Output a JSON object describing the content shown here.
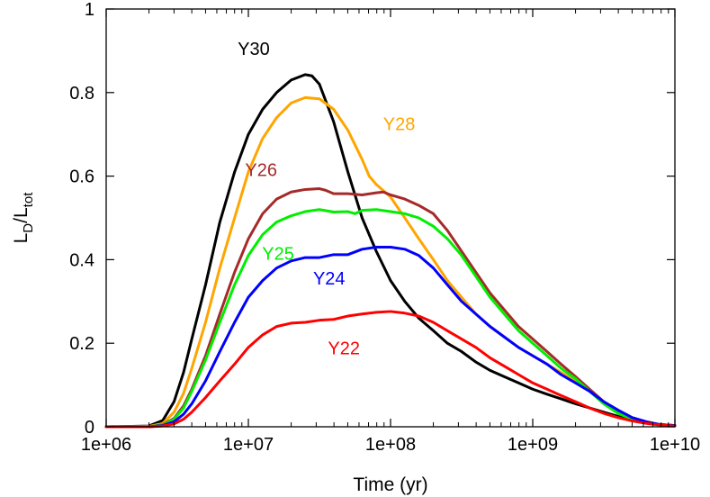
{
  "chart_data": {
    "type": "line",
    "xlabel": "Time (yr)",
    "ylabel": {
      "base": "L",
      "num_sub": "D",
      "den_base": "L",
      "den_sub": "tot"
    },
    "xscale": "log",
    "xlim": [
      1000000,
      10000000000
    ],
    "ylim": [
      0,
      1
    ],
    "xticks": [
      {
        "value": 1000000,
        "label": "1e+06"
      },
      {
        "value": 10000000,
        "label": "1e+07"
      },
      {
        "value": 100000000,
        "label": "1e+08"
      },
      {
        "value": 1000000000,
        "label": "1e+09"
      },
      {
        "value": 10000000000,
        "label": "1e+10"
      }
    ],
    "yticks": [
      {
        "value": 0,
        "label": "0"
      },
      {
        "value": 0.2,
        "label": "0.2"
      },
      {
        "value": 0.4,
        "label": "0.4"
      },
      {
        "value": 0.6,
        "label": "0.6"
      },
      {
        "value": 0.8,
        "label": "0.8"
      },
      {
        "value": 1,
        "label": "1"
      }
    ],
    "grid": false,
    "legend": "none",
    "series": [
      {
        "name": "Y30",
        "color": "#000000",
        "label_at": [
          10900000,
          0.89
        ],
        "points": [
          [
            1000000,
            0
          ],
          [
            2000000,
            0.002
          ],
          [
            2500000,
            0.015
          ],
          [
            3000000,
            0.06
          ],
          [
            3500000,
            0.13
          ],
          [
            4000000,
            0.21
          ],
          [
            5000000,
            0.34
          ],
          [
            6300000,
            0.49
          ],
          [
            8000000,
            0.61
          ],
          [
            10000000,
            0.7
          ],
          [
            12600000,
            0.76
          ],
          [
            15800000,
            0.8
          ],
          [
            20000000,
            0.83
          ],
          [
            25100000,
            0.843
          ],
          [
            28000000,
            0.84
          ],
          [
            31600000,
            0.82
          ],
          [
            39800000,
            0.73
          ],
          [
            50100000,
            0.61
          ],
          [
            63100000,
            0.5
          ],
          [
            79400000,
            0.42
          ],
          [
            100000000,
            0.35
          ],
          [
            126000000,
            0.3
          ],
          [
            158000000,
            0.26
          ],
          [
            200000000,
            0.23
          ],
          [
            251000000,
            0.2
          ],
          [
            316000000,
            0.18
          ],
          [
            398000000,
            0.155
          ],
          [
            501000000,
            0.135
          ],
          [
            631000000,
            0.12
          ],
          [
            794000000,
            0.105
          ],
          [
            1000000000,
            0.09
          ],
          [
            1260000000,
            0.078
          ],
          [
            1580000000,
            0.067
          ],
          [
            2000000000,
            0.055
          ],
          [
            2510000000,
            0.045
          ],
          [
            3160000000,
            0.035
          ],
          [
            3980000000,
            0.025
          ],
          [
            5010000000,
            0.017
          ],
          [
            6310000000,
            0.01
          ],
          [
            7940000000,
            0.005
          ],
          [
            10000000000,
            0.003
          ]
        ]
      },
      {
        "name": "Y28",
        "color": "#ffa500",
        "label_at": [
          115000000,
          0.71
        ],
        "points": [
          [
            1000000,
            0
          ],
          [
            2000000,
            0.001
          ],
          [
            2500000,
            0.008
          ],
          [
            3000000,
            0.035
          ],
          [
            3500000,
            0.08
          ],
          [
            4000000,
            0.14
          ],
          [
            5000000,
            0.25
          ],
          [
            6300000,
            0.38
          ],
          [
            8000000,
            0.5
          ],
          [
            10000000,
            0.61
          ],
          [
            12600000,
            0.69
          ],
          [
            15800000,
            0.74
          ],
          [
            20000000,
            0.775
          ],
          [
            25100000,
            0.788
          ],
          [
            31600000,
            0.785
          ],
          [
            39800000,
            0.76
          ],
          [
            50100000,
            0.71
          ],
          [
            63100000,
            0.64
          ],
          [
            70800000,
            0.6
          ],
          [
            79400000,
            0.58
          ],
          [
            100000000,
            0.55
          ],
          [
            126000000,
            0.5
          ],
          [
            158000000,
            0.45
          ],
          [
            200000000,
            0.4
          ],
          [
            251000000,
            0.35
          ],
          [
            316000000,
            0.31
          ],
          [
            398000000,
            0.27
          ],
          [
            501000000,
            0.24
          ],
          [
            631000000,
            0.215
          ],
          [
            794000000,
            0.19
          ],
          [
            1000000000,
            0.17
          ],
          [
            1260000000,
            0.15
          ],
          [
            1580000000,
            0.13
          ],
          [
            2000000000,
            0.11
          ],
          [
            2510000000,
            0.085
          ],
          [
            3160000000,
            0.06
          ],
          [
            3980000000,
            0.04
          ],
          [
            5010000000,
            0.022
          ],
          [
            6310000000,
            0.012
          ],
          [
            7940000000,
            0.005
          ],
          [
            10000000000,
            0.003
          ]
        ]
      },
      {
        "name": "Y26",
        "color": "#a52a2a",
        "label_at": [
          12300000,
          0.6
        ],
        "points": [
          [
            1000000,
            0
          ],
          [
            2000000,
            0
          ],
          [
            2500000,
            0.005
          ],
          [
            3000000,
            0.02
          ],
          [
            3500000,
            0.05
          ],
          [
            4000000,
            0.09
          ],
          [
            5000000,
            0.17
          ],
          [
            6300000,
            0.27
          ],
          [
            8000000,
            0.37
          ],
          [
            10000000,
            0.45
          ],
          [
            12600000,
            0.51
          ],
          [
            15800000,
            0.545
          ],
          [
            20000000,
            0.562
          ],
          [
            25100000,
            0.568
          ],
          [
            31600000,
            0.57
          ],
          [
            35000000,
            0.566
          ],
          [
            39800000,
            0.558
          ],
          [
            50100000,
            0.558
          ],
          [
            63100000,
            0.555
          ],
          [
            79400000,
            0.56
          ],
          [
            89100000,
            0.562
          ],
          [
            100000000,
            0.555
          ],
          [
            126000000,
            0.545
          ],
          [
            158000000,
            0.53
          ],
          [
            200000000,
            0.51
          ],
          [
            251000000,
            0.47
          ],
          [
            316000000,
            0.42
          ],
          [
            398000000,
            0.37
          ],
          [
            501000000,
            0.32
          ],
          [
            631000000,
            0.28
          ],
          [
            794000000,
            0.24
          ],
          [
            1000000000,
            0.21
          ],
          [
            1260000000,
            0.18
          ],
          [
            1580000000,
            0.15
          ],
          [
            2000000000,
            0.12
          ],
          [
            2510000000,
            0.09
          ],
          [
            3160000000,
            0.06
          ],
          [
            3980000000,
            0.035
          ],
          [
            5010000000,
            0.02
          ],
          [
            6310000000,
            0.01
          ],
          [
            7940000000,
            0.005
          ],
          [
            10000000000,
            0.003
          ]
        ]
      },
      {
        "name": "Y25",
        "color": "#00ee00",
        "label_at": [
          16200000,
          0.4
        ],
        "points": [
          [
            1000000,
            0
          ],
          [
            2000000,
            0
          ],
          [
            2500000,
            0.004
          ],
          [
            3000000,
            0.018
          ],
          [
            3500000,
            0.045
          ],
          [
            4000000,
            0.085
          ],
          [
            5000000,
            0.16
          ],
          [
            6300000,
            0.25
          ],
          [
            8000000,
            0.34
          ],
          [
            10000000,
            0.41
          ],
          [
            12600000,
            0.46
          ],
          [
            15800000,
            0.49
          ],
          [
            20000000,
            0.505
          ],
          [
            25100000,
            0.515
          ],
          [
            31600000,
            0.52
          ],
          [
            39800000,
            0.514
          ],
          [
            50100000,
            0.515
          ],
          [
            56200000,
            0.51
          ],
          [
            63100000,
            0.518
          ],
          [
            79400000,
            0.52
          ],
          [
            100000000,
            0.515
          ],
          [
            126000000,
            0.51
          ],
          [
            158000000,
            0.5
          ],
          [
            200000000,
            0.48
          ],
          [
            251000000,
            0.45
          ],
          [
            316000000,
            0.41
          ],
          [
            398000000,
            0.36
          ],
          [
            501000000,
            0.31
          ],
          [
            631000000,
            0.27
          ],
          [
            794000000,
            0.23
          ],
          [
            1000000000,
            0.2
          ],
          [
            1260000000,
            0.17
          ],
          [
            1580000000,
            0.14
          ],
          [
            2000000000,
            0.115
          ],
          [
            2510000000,
            0.085
          ],
          [
            3160000000,
            0.055
          ],
          [
            3980000000,
            0.032
          ],
          [
            5010000000,
            0.018
          ],
          [
            6310000000,
            0.009
          ],
          [
            7940000000,
            0.005
          ],
          [
            10000000000,
            0.003
          ]
        ]
      },
      {
        "name": "Y24",
        "color": "#0000ff",
        "label_at": [
          37000000,
          0.34
        ],
        "points": [
          [
            1000000,
            0
          ],
          [
            2000000,
            0
          ],
          [
            2500000,
            0.003
          ],
          [
            3000000,
            0.012
          ],
          [
            3500000,
            0.03
          ],
          [
            4000000,
            0.055
          ],
          [
            5000000,
            0.11
          ],
          [
            6300000,
            0.18
          ],
          [
            8000000,
            0.25
          ],
          [
            10000000,
            0.31
          ],
          [
            12600000,
            0.35
          ],
          [
            15800000,
            0.38
          ],
          [
            20000000,
            0.397
          ],
          [
            25100000,
            0.405
          ],
          [
            31600000,
            0.405
          ],
          [
            39800000,
            0.412
          ],
          [
            50100000,
            0.412
          ],
          [
            63100000,
            0.425
          ],
          [
            79400000,
            0.43
          ],
          [
            100000000,
            0.43
          ],
          [
            126000000,
            0.425
          ],
          [
            158000000,
            0.41
          ],
          [
            200000000,
            0.38
          ],
          [
            251000000,
            0.34
          ],
          [
            316000000,
            0.3
          ],
          [
            398000000,
            0.27
          ],
          [
            501000000,
            0.24
          ],
          [
            631000000,
            0.215
          ],
          [
            794000000,
            0.19
          ],
          [
            1000000000,
            0.17
          ],
          [
            1260000000,
            0.15
          ],
          [
            1580000000,
            0.125
          ],
          [
            2000000000,
            0.105
          ],
          [
            2510000000,
            0.085
          ],
          [
            3160000000,
            0.06
          ],
          [
            3980000000,
            0.04
          ],
          [
            5010000000,
            0.022
          ],
          [
            6310000000,
            0.012
          ],
          [
            7940000000,
            0.005
          ],
          [
            10000000000,
            0.003
          ]
        ]
      },
      {
        "name": "Y22",
        "color": "#ff0000",
        "label_at": [
          47000000,
          0.174
        ],
        "points": [
          [
            1000000,
            0
          ],
          [
            2000000,
            0
          ],
          [
            2500000,
            0.002
          ],
          [
            3000000,
            0.007
          ],
          [
            3500000,
            0.018
          ],
          [
            4000000,
            0.035
          ],
          [
            5000000,
            0.07
          ],
          [
            6300000,
            0.11
          ],
          [
            8000000,
            0.15
          ],
          [
            10000000,
            0.19
          ],
          [
            12600000,
            0.22
          ],
          [
            15800000,
            0.24
          ],
          [
            20000000,
            0.248
          ],
          [
            25100000,
            0.25
          ],
          [
            31600000,
            0.255
          ],
          [
            39800000,
            0.257
          ],
          [
            50100000,
            0.265
          ],
          [
            63100000,
            0.27
          ],
          [
            79400000,
            0.274
          ],
          [
            100000000,
            0.276
          ],
          [
            126000000,
            0.272
          ],
          [
            158000000,
            0.265
          ],
          [
            200000000,
            0.25
          ],
          [
            251000000,
            0.23
          ],
          [
            316000000,
            0.21
          ],
          [
            398000000,
            0.19
          ],
          [
            501000000,
            0.165
          ],
          [
            631000000,
            0.145
          ],
          [
            794000000,
            0.125
          ],
          [
            1000000000,
            0.105
          ],
          [
            1260000000,
            0.09
          ],
          [
            1580000000,
            0.075
          ],
          [
            2000000000,
            0.06
          ],
          [
            2510000000,
            0.045
          ],
          [
            3160000000,
            0.032
          ],
          [
            3980000000,
            0.022
          ],
          [
            5010000000,
            0.014
          ],
          [
            6310000000,
            0.008
          ],
          [
            7940000000,
            0.004
          ],
          [
            10000000000,
            0.002
          ]
        ]
      }
    ]
  }
}
